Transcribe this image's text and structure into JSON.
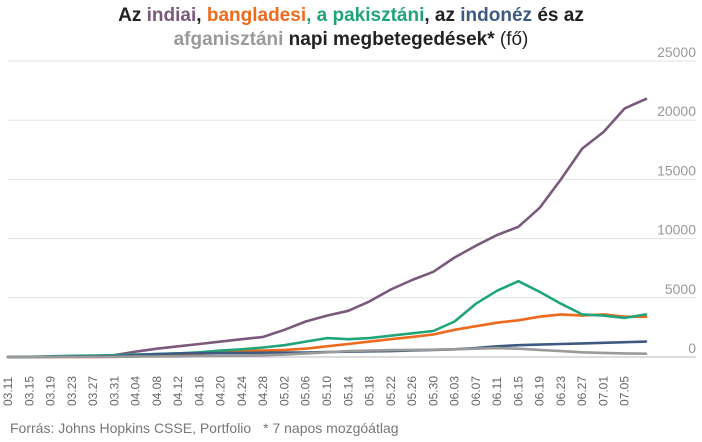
{
  "title": {
    "p1": "Az ",
    "w_india": "indiai",
    "p2": ", ",
    "w_bangladesh": "bangladesi",
    "p3": ", a ",
    "w_pakistan": "pakisztáni",
    "p4": ", az ",
    "w_indonesia": "indonéz",
    "p5": " és az",
    "w_afghanistan": "afganisztáni",
    "p6": " napi megbetegedések*",
    "p7": " (fő)"
  },
  "footer": {
    "source": "Forrás: Johns Hopkins CSSE, Portfolio",
    "note": "* 7 napos mozgóátlag"
  },
  "chart_data": {
    "type": "line",
    "ylim": [
      0,
      25000
    ],
    "yticks": [
      0,
      5000,
      10000,
      15000,
      20000,
      25000
    ],
    "grid": true,
    "x_tick_labels": [
      "03.11",
      "03.15",
      "03.19",
      "03.23",
      "03.27",
      "03.31",
      "04.04",
      "04.08",
      "04.12",
      "04.16",
      "04.20",
      "04.24",
      "04.28",
      "05.02",
      "05.06",
      "05.10",
      "05.14",
      "05.18",
      "05.22",
      "05.26",
      "05.30",
      "06.03",
      "06.07",
      "06.11",
      "06.15",
      "06.19",
      "06.23",
      "06.27",
      "07.01",
      "07.05"
    ],
    "x": [
      "03.11",
      "03.15",
      "03.19",
      "03.23",
      "03.27",
      "03.31",
      "04.04",
      "04.08",
      "04.12",
      "04.16",
      "04.20",
      "04.24",
      "04.28",
      "05.02",
      "05.06",
      "05.10",
      "05.14",
      "05.18",
      "05.22",
      "05.26",
      "05.30",
      "06.03",
      "06.07",
      "06.11",
      "06.15",
      "06.19",
      "06.23",
      "06.27",
      "07.01",
      "07.05",
      "07.07"
    ],
    "series": [
      {
        "key": "india",
        "color": "#7a5a7c",
        "values": [
          5,
          10,
          20,
          50,
          80,
          150,
          450,
          700,
          900,
          1100,
          1300,
          1500,
          1700,
          2300,
          3000,
          3500,
          3900,
          4700,
          5700,
          6500,
          7200,
          8400,
          9400,
          10300,
          11000,
          12600,
          15000,
          17600,
          19000,
          21000,
          21800
        ]
      },
      {
        "key": "bangladesh",
        "color": "#ee6a1c",
        "values": [
          0,
          1,
          3,
          5,
          8,
          15,
          40,
          90,
          150,
          250,
          400,
          500,
          550,
          600,
          700,
          900,
          1100,
          1300,
          1500,
          1700,
          1900,
          2300,
          2600,
          2900,
          3100,
          3400,
          3600,
          3500,
          3600,
          3400,
          3400
        ]
      },
      {
        "key": "pakistan",
        "color": "#20a57a",
        "values": [
          5,
          20,
          60,
          100,
          120,
          150,
          200,
          250,
          300,
          400,
          550,
          650,
          800,
          1000,
          1300,
          1600,
          1500,
          1600,
          1800,
          2000,
          2200,
          3000,
          4500,
          5600,
          6400,
          5500,
          4500,
          3600,
          3500,
          3300,
          3600
        ]
      },
      {
        "key": "indonesia",
        "color": "#3f5a82",
        "values": [
          2,
          5,
          15,
          30,
          50,
          80,
          150,
          250,
          300,
          320,
          340,
          350,
          360,
          370,
          380,
          420,
          450,
          480,
          500,
          550,
          600,
          650,
          750,
          900,
          1000,
          1050,
          1100,
          1150,
          1200,
          1250,
          1300
        ]
      },
      {
        "key": "afghanistan",
        "color": "#9a9a9a",
        "values": [
          0,
          1,
          3,
          5,
          10,
          20,
          30,
          40,
          50,
          80,
          100,
          120,
          150,
          200,
          300,
          400,
          500,
          550,
          580,
          600,
          620,
          650,
          700,
          750,
          700,
          600,
          500,
          400,
          350,
          300,
          280
        ]
      }
    ]
  }
}
